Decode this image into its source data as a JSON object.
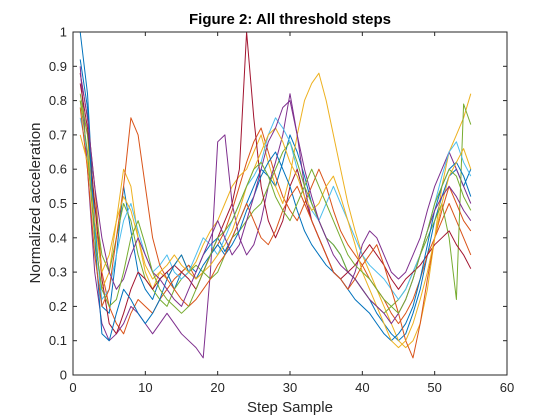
{
  "chart_data": {
    "type": "line",
    "title": "Figure 2: All threshold steps",
    "xlabel": "Step Sample",
    "ylabel": "Normalized acceleration",
    "xlim": [
      0,
      60
    ],
    "ylim": [
      0,
      1
    ],
    "xticks": [
      "0",
      "10",
      "20",
      "30",
      "40",
      "50",
      "60"
    ],
    "yticks": [
      "0",
      "0.1",
      "0.2",
      "0.3",
      "0.4",
      "0.5",
      "0.6",
      "0.7",
      "0.8",
      "0.9",
      "1"
    ],
    "grid": false,
    "box": true,
    "x": [
      1,
      2,
      3,
      4,
      5,
      6,
      7,
      8,
      9,
      10,
      11,
      12,
      13,
      14,
      15,
      16,
      17,
      18,
      19,
      20,
      21,
      22,
      23,
      24,
      25,
      26,
      27,
      28,
      29,
      30,
      31,
      32,
      33,
      34,
      35,
      36,
      37,
      38,
      39,
      40,
      41,
      42,
      43,
      44,
      45,
      46,
      47,
      48,
      49,
      50,
      51,
      52,
      53,
      54,
      55
    ],
    "series": [
      {
        "color": "#0072bd",
        "values": [
          1.0,
          0.82,
          0.45,
          0.2,
          0.18,
          0.35,
          0.55,
          0.42,
          0.3,
          0.25,
          0.22,
          0.28,
          0.3,
          0.25,
          0.3,
          0.32,
          0.3,
          0.35,
          0.38,
          0.4,
          0.36,
          0.4,
          0.45,
          0.5,
          0.55,
          0.6,
          0.58,
          0.55,
          0.62,
          0.7,
          0.65,
          0.58,
          0.5,
          0.45,
          0.4,
          0.38,
          0.35,
          0.3,
          0.28,
          0.25,
          0.22,
          0.18,
          0.15,
          0.12,
          0.1,
          0.12,
          0.18,
          0.25,
          0.35,
          0.45,
          0.52,
          0.58,
          0.6,
          0.55,
          0.6
        ]
      },
      {
        "color": "#d95319",
        "values": [
          0.88,
          0.75,
          0.55,
          0.3,
          0.2,
          0.15,
          0.12,
          0.18,
          0.22,
          0.2,
          0.18,
          0.22,
          0.25,
          0.28,
          0.3,
          0.32,
          0.28,
          0.3,
          0.35,
          0.38,
          0.42,
          0.48,
          0.55,
          0.62,
          0.68,
          0.72,
          0.65,
          0.58,
          0.52,
          0.48,
          0.45,
          0.5,
          0.55,
          0.6,
          0.55,
          0.48,
          0.42,
          0.38,
          0.35,
          0.32,
          0.28,
          0.25,
          0.22,
          0.18,
          0.15,
          0.18,
          0.22,
          0.28,
          0.35,
          0.4,
          0.45,
          0.5,
          0.45,
          0.4,
          0.35
        ]
      },
      {
        "color": "#edb120",
        "values": [
          0.8,
          0.7,
          0.4,
          0.25,
          0.3,
          0.45,
          0.6,
          0.55,
          0.4,
          0.3,
          0.25,
          0.3,
          0.28,
          0.32,
          0.35,
          0.3,
          0.33,
          0.38,
          0.42,
          0.45,
          0.5,
          0.55,
          0.58,
          0.6,
          0.65,
          0.7,
          0.62,
          0.55,
          0.5,
          0.58,
          0.7,
          0.8,
          0.85,
          0.88,
          0.8,
          0.7,
          0.6,
          0.5,
          0.42,
          0.35,
          0.3,
          0.25,
          0.2,
          0.15,
          0.1,
          0.08,
          0.1,
          0.15,
          0.25,
          0.4,
          0.55,
          0.65,
          0.7,
          0.75,
          0.82
        ]
      },
      {
        "color": "#7e2f8e",
        "values": [
          0.9,
          0.6,
          0.3,
          0.15,
          0.1,
          0.12,
          0.15,
          0.2,
          0.18,
          0.15,
          0.12,
          0.15,
          0.18,
          0.15,
          0.12,
          0.1,
          0.08,
          0.05,
          0.3,
          0.68,
          0.7,
          0.5,
          0.4,
          0.35,
          0.38,
          0.45,
          0.55,
          0.62,
          0.7,
          0.82,
          0.7,
          0.55,
          0.45,
          0.4,
          0.35,
          0.3,
          0.28,
          0.25,
          0.3,
          0.38,
          0.42,
          0.4,
          0.35,
          0.3,
          0.28,
          0.3,
          0.35,
          0.4,
          0.48,
          0.55,
          0.6,
          0.65,
          0.6,
          0.55,
          0.5
        ]
      },
      {
        "color": "#77ac30",
        "values": [
          0.82,
          0.7,
          0.5,
          0.35,
          0.3,
          0.4,
          0.5,
          0.45,
          0.35,
          0.28,
          0.25,
          0.22,
          0.2,
          0.25,
          0.28,
          0.3,
          0.32,
          0.3,
          0.28,
          0.3,
          0.35,
          0.4,
          0.42,
          0.45,
          0.48,
          0.5,
          0.55,
          0.6,
          0.65,
          0.68,
          0.62,
          0.55,
          0.5,
          0.45,
          0.4,
          0.38,
          0.35,
          0.3,
          0.28,
          0.25,
          0.22,
          0.2,
          0.18,
          0.2,
          0.22,
          0.25,
          0.3,
          0.35,
          0.4,
          0.45,
          0.5,
          0.4,
          0.22,
          0.79,
          0.73
        ]
      },
      {
        "color": "#4dbeee",
        "values": [
          0.75,
          0.65,
          0.42,
          0.22,
          0.25,
          0.35,
          0.45,
          0.5,
          0.42,
          0.35,
          0.3,
          0.32,
          0.35,
          0.3,
          0.28,
          0.3,
          0.35,
          0.4,
          0.38,
          0.35,
          0.4,
          0.45,
          0.5,
          0.55,
          0.58,
          0.62,
          0.7,
          0.75,
          0.72,
          0.68,
          0.6,
          0.52,
          0.48,
          0.45,
          0.5,
          0.55,
          0.5,
          0.45,
          0.4,
          0.35,
          0.32,
          0.3,
          0.28,
          0.25,
          0.22,
          0.25,
          0.3,
          0.35,
          0.42,
          0.5,
          0.58,
          0.65,
          0.68,
          0.62,
          0.58
        ]
      },
      {
        "color": "#a2142f",
        "values": [
          0.85,
          0.72,
          0.5,
          0.28,
          0.15,
          0.12,
          0.18,
          0.25,
          0.3,
          0.28,
          0.25,
          0.28,
          0.3,
          0.32,
          0.3,
          0.28,
          0.25,
          0.3,
          0.35,
          0.4,
          0.45,
          0.5,
          0.6,
          1.0,
          0.75,
          0.55,
          0.45,
          0.4,
          0.45,
          0.55,
          0.6,
          0.52,
          0.45,
          0.4,
          0.35,
          0.3,
          0.28,
          0.3,
          0.32,
          0.35,
          0.38,
          0.35,
          0.32,
          0.28,
          0.25,
          0.28,
          0.3,
          0.32,
          0.35,
          0.38,
          0.4,
          0.42,
          0.38,
          0.35,
          0.31
        ]
      },
      {
        "color": "#0072bd",
        "values": [
          0.92,
          0.78,
          0.4,
          0.12,
          0.1,
          0.18,
          0.25,
          0.22,
          0.18,
          0.15,
          0.18,
          0.22,
          0.28,
          0.32,
          0.35,
          0.3,
          0.28,
          0.32,
          0.35,
          0.38,
          0.35,
          0.38,
          0.42,
          0.48,
          0.52,
          0.58,
          0.62,
          0.65,
          0.6,
          0.55,
          0.48,
          0.42,
          0.38,
          0.35,
          0.32,
          0.3,
          0.28,
          0.25,
          0.22,
          0.2,
          0.18,
          0.15,
          0.12,
          0.1,
          0.12,
          0.15,
          0.2,
          0.28,
          0.38,
          0.48,
          0.55,
          0.6,
          0.62,
          0.58,
          0.52
        ]
      },
      {
        "color": "#d95319",
        "values": [
          0.78,
          0.6,
          0.35,
          0.2,
          0.25,
          0.4,
          0.55,
          0.75,
          0.7,
          0.55,
          0.4,
          0.32,
          0.28,
          0.25,
          0.22,
          0.2,
          0.22,
          0.25,
          0.28,
          0.32,
          0.35,
          0.4,
          0.45,
          0.5,
          0.45,
          0.4,
          0.38,
          0.42,
          0.48,
          0.52,
          0.55,
          0.5,
          0.45,
          0.4,
          0.35,
          0.3,
          0.28,
          0.25,
          0.28,
          0.32,
          0.35,
          0.38,
          0.32,
          0.25,
          0.18,
          0.1,
          0.05,
          0.15,
          0.28,
          0.4,
          0.48,
          0.55,
          0.5,
          0.45,
          0.42
        ]
      },
      {
        "color": "#edb120",
        "values": [
          0.7,
          0.62,
          0.45,
          0.3,
          0.35,
          0.45,
          0.52,
          0.48,
          0.4,
          0.32,
          0.28,
          0.3,
          0.32,
          0.35,
          0.32,
          0.3,
          0.28,
          0.3,
          0.32,
          0.35,
          0.38,
          0.42,
          0.48,
          0.55,
          0.6,
          0.65,
          0.7,
          0.72,
          0.68,
          0.62,
          0.58,
          0.52,
          0.48,
          0.5,
          0.55,
          0.58,
          0.52,
          0.45,
          0.38,
          0.3,
          0.25,
          0.2,
          0.15,
          0.1,
          0.08,
          0.1,
          0.15,
          0.22,
          0.3,
          0.4,
          0.5,
          0.58,
          0.62,
          0.66,
          0.6
        ]
      },
      {
        "color": "#7e2f8e",
        "values": [
          0.88,
          0.75,
          0.55,
          0.4,
          0.3,
          0.25,
          0.28,
          0.35,
          0.4,
          0.35,
          0.3,
          0.28,
          0.25,
          0.22,
          0.2,
          0.25,
          0.3,
          0.35,
          0.4,
          0.45,
          0.4,
          0.35,
          0.38,
          0.45,
          0.52,
          0.6,
          0.68,
          0.72,
          0.78,
          0.8,
          0.7,
          0.6,
          0.52,
          0.45,
          0.4,
          0.35,
          0.32,
          0.3,
          0.28,
          0.25,
          0.22,
          0.2,
          0.18,
          0.15,
          0.18,
          0.22,
          0.28,
          0.35,
          0.42,
          0.48,
          0.52,
          0.55,
          0.52,
          0.48,
          0.45
        ]
      },
      {
        "color": "#77ac30",
        "values": [
          0.8,
          0.65,
          0.4,
          0.25,
          0.2,
          0.22,
          0.3,
          0.4,
          0.45,
          0.38,
          0.3,
          0.25,
          0.22,
          0.2,
          0.18,
          0.2,
          0.25,
          0.3,
          0.35,
          0.4,
          0.42,
          0.45,
          0.5,
          0.55,
          0.6,
          0.62,
          0.58,
          0.52,
          0.48,
          0.45,
          0.5,
          0.55,
          0.6,
          0.55,
          0.5,
          0.45,
          0.4,
          0.35,
          0.32,
          0.3,
          0.28,
          0.25,
          0.22,
          0.2,
          0.18,
          0.22,
          0.28,
          0.35,
          0.42,
          0.5,
          0.55,
          0.6,
          0.58,
          0.52,
          0.48
        ]
      }
    ]
  }
}
